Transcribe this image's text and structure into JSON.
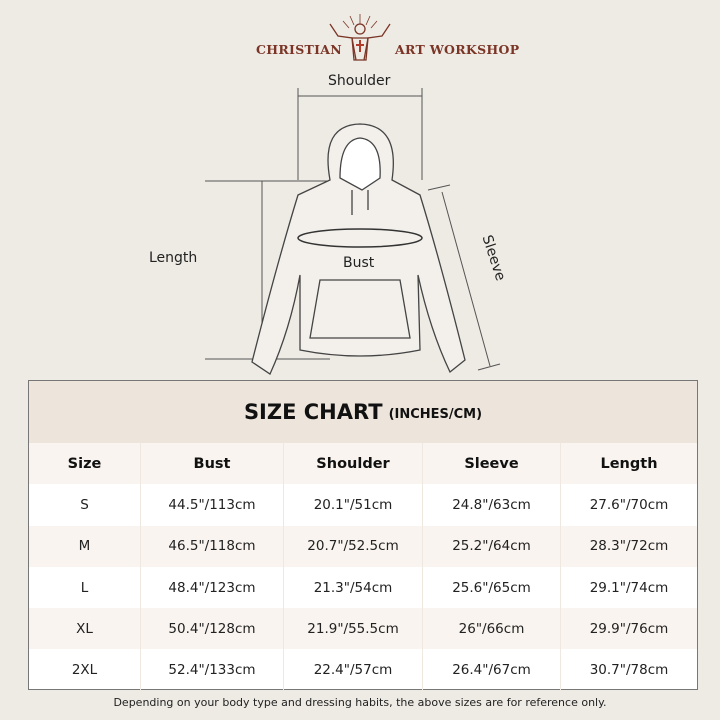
{
  "brand": {
    "left": "CHRISTIAN",
    "right": "ART WORKSHOP",
    "logo_icon": "jesus-open-arms-sunburst-cross",
    "color": "#7a3526"
  },
  "diagram": {
    "shoulder": "Shoulder",
    "length": "Length",
    "bust": "Bust",
    "sleeve": "Sleeve"
  },
  "table": {
    "title": "SIZE CHART",
    "unit": "(INCHES/CM)",
    "headers": [
      "Size",
      "Bust",
      "Shoulder",
      "Sleeve",
      "Length"
    ],
    "rows": [
      [
        "S",
        "44.5\"/113cm",
        "20.1\"/51cm",
        "24.8\"/63cm",
        "27.6\"/70cm"
      ],
      [
        "M",
        "46.5\"/118cm",
        "20.7\"/52.5cm",
        "25.2\"/64cm",
        "28.3\"/72cm"
      ],
      [
        "L",
        "48.4\"/123cm",
        "21.3\"/54cm",
        "25.6\"/65cm",
        "29.1\"/74cm"
      ],
      [
        "XL",
        "50.4\"/128cm",
        "21.9\"/55.5cm",
        "26\"/66cm",
        "29.9\"/76cm"
      ],
      [
        "2XL",
        "52.4\"/133cm",
        "22.4\"/57cm",
        "26.4\"/67cm",
        "30.7\"/78cm"
      ]
    ]
  },
  "note": "Depending on your body type and dressing habits, the above sizes are for reference only."
}
